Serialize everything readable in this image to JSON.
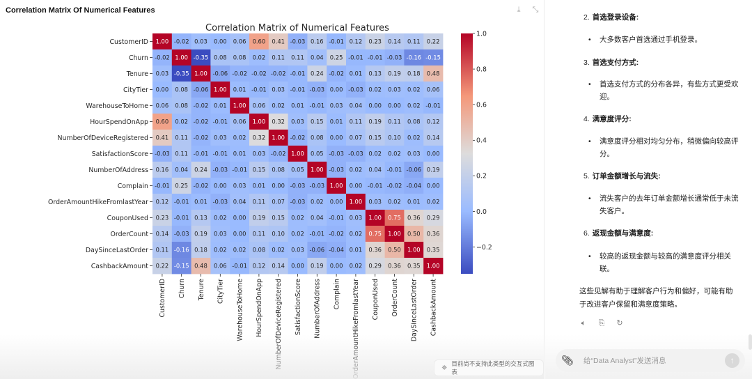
{
  "left_pane": {
    "title": "Correlation Matrix Of Numerical Features",
    "tools": {
      "download_icon": "download-icon",
      "collapse_icon": "collapse-icon"
    },
    "unsupported_note": "目前尚不支持此类型的交互式图表"
  },
  "chart_data": {
    "type": "heatmap",
    "title": "Correlation Matrix of Numerical Features",
    "colormap": "coolwarm",
    "labels": [
      "CustomerID",
      "Churn",
      "Tenure",
      "CityTier",
      "WarehouseToHome",
      "HourSpendOnApp",
      "NumberOfDeviceRegistered",
      "SatisfactionScore",
      "NumberOfAddress",
      "Complain",
      "OrderAmountHikeFromlastYear",
      "CouponUsed",
      "OrderCount",
      "DaySinceLastOrder",
      "CashbackAmount"
    ],
    "matrix": [
      [
        1.0,
        -0.02,
        0.03,
        0.0,
        0.06,
        0.6,
        0.41,
        -0.03,
        0.16,
        -0.01,
        0.12,
        0.23,
        0.14,
        0.11,
        0.22
      ],
      [
        -0.02,
        1.0,
        -0.35,
        0.08,
        0.08,
        0.02,
        0.11,
        0.11,
        0.04,
        0.25,
        -0.01,
        -0.01,
        -0.03,
        -0.16,
        -0.15
      ],
      [
        0.03,
        -0.35,
        1.0,
        -0.06,
        -0.02,
        -0.02,
        -0.02,
        -0.01,
        0.24,
        -0.02,
        0.01,
        0.13,
        0.19,
        0.18,
        0.48
      ],
      [
        0.0,
        0.08,
        -0.06,
        1.0,
        0.01,
        -0.01,
        0.03,
        -0.01,
        -0.03,
        0.0,
        -0.03,
        0.02,
        0.03,
        0.02,
        0.06
      ],
      [
        0.06,
        0.08,
        -0.02,
        0.01,
        1.0,
        0.06,
        0.02,
        0.01,
        -0.01,
        0.03,
        0.04,
        -0.0,
        0.0,
        0.02,
        -0.01
      ],
      [
        0.6,
        0.02,
        -0.02,
        -0.01,
        0.06,
        1.0,
        0.32,
        0.03,
        0.15,
        0.01,
        0.11,
        0.19,
        0.11,
        0.08,
        0.12
      ],
      [
        0.41,
        0.11,
        -0.02,
        0.03,
        0.02,
        0.32,
        1.0,
        -0.02,
        0.08,
        0.0,
        0.07,
        0.15,
        0.1,
        0.02,
        0.14
      ],
      [
        -0.03,
        0.11,
        -0.01,
        -0.01,
        0.01,
        0.03,
        -0.02,
        1.0,
        0.05,
        -0.03,
        -0.03,
        0.02,
        0.02,
        0.03,
        0.0
      ],
      [
        0.16,
        0.04,
        0.24,
        -0.03,
        -0.01,
        0.15,
        0.08,
        0.05,
        1.0,
        -0.03,
        0.02,
        0.04,
        -0.01,
        -0.06,
        0.19
      ],
      [
        -0.01,
        0.25,
        -0.02,
        0.0,
        0.03,
        0.01,
        0.0,
        -0.03,
        -0.03,
        1.0,
        -0.0,
        -0.01,
        -0.02,
        -0.04,
        0.0
      ],
      [
        0.12,
        -0.01,
        0.01,
        -0.03,
        0.04,
        0.11,
        0.07,
        -0.03,
        0.02,
        -0.0,
        1.0,
        0.03,
        0.02,
        0.01,
        0.02
      ],
      [
        0.23,
        -0.01,
        0.13,
        0.02,
        -0.0,
        0.19,
        0.15,
        0.02,
        0.04,
        -0.01,
        0.03,
        1.0,
        0.75,
        0.36,
        0.29
      ],
      [
        0.14,
        -0.03,
        0.19,
        0.03,
        0.0,
        0.11,
        0.1,
        0.02,
        -0.01,
        -0.02,
        0.02,
        0.75,
        1.0,
        0.5,
        0.36
      ],
      [
        0.11,
        -0.16,
        0.18,
        0.02,
        0.02,
        0.08,
        0.02,
        0.03,
        -0.06,
        -0.04,
        0.01,
        0.36,
        0.5,
        1.0,
        0.35
      ],
      [
        0.22,
        -0.15,
        0.48,
        0.06,
        -0.01,
        0.12,
        0.14,
        0.0,
        0.19,
        0.0,
        0.02,
        0.29,
        0.36,
        0.35,
        1.0
      ]
    ],
    "value_format": "0.00",
    "colorbar": {
      "range": [
        -0.35,
        1.0
      ],
      "ticks": [
        1.0,
        0.8,
        0.6,
        0.4,
        0.2,
        0.0,
        -0.2
      ],
      "tick_labels": [
        "1.0",
        "0.8",
        "0.6",
        "0.4",
        "0.2",
        "0.0",
        "−0.2"
      ],
      "placement": "right"
    }
  },
  "right_pane": {
    "items": [
      {
        "num": "2.",
        "title": "首选登录设备:",
        "bullet": "大多数客户首选通过手机登录。"
      },
      {
        "num": "3.",
        "title": "首选支付方式:",
        "bullet": "首选支付方式的分布各异，有些方式更受欢迎。"
      },
      {
        "num": "4.",
        "title": "满意度评分:",
        "bullet": "满意度评分相对均匀分布，稍微偏向较高评分。"
      },
      {
        "num": "5.",
        "title": "订单金额增长与流失:",
        "bullet": "流失客户的去年订单金额增长通常低于未流失客户。"
      },
      {
        "num": "6.",
        "title": "返现金额与满意度:",
        "bullet": "较高的返现金额与较高的满意度评分相关联。"
      }
    ],
    "summary": "这些见解有助于理解客户行为和偏好，可能有助于改进客户保留和满意度策略。",
    "actions": [
      "read-aloud-icon",
      "copy-icon",
      "regenerate-icon"
    ],
    "composer": {
      "placeholder": "给“Data Analyst”发送消息",
      "value": ""
    }
  }
}
